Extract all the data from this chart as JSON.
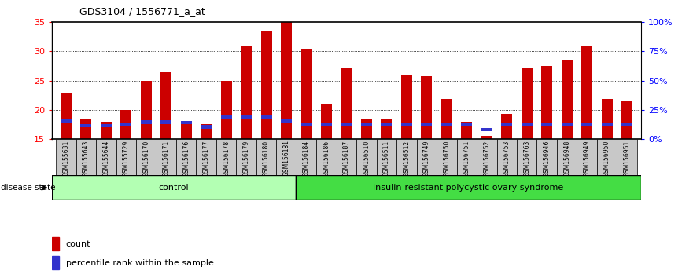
{
  "title": "GDS3104 / 1556771_a_at",
  "samples": [
    "GSM155631",
    "GSM155643",
    "GSM155644",
    "GSM155729",
    "GSM156170",
    "GSM156171",
    "GSM156176",
    "GSM156177",
    "GSM156178",
    "GSM156179",
    "GSM156180",
    "GSM156181",
    "GSM156184",
    "GSM156186",
    "GSM156187",
    "GSM156510",
    "GSM156511",
    "GSM156512",
    "GSM156749",
    "GSM156750",
    "GSM156751",
    "GSM156752",
    "GSM156753",
    "GSM156763",
    "GSM156946",
    "GSM156948",
    "GSM156949",
    "GSM156950",
    "GSM156951"
  ],
  "count_values": [
    23.0,
    18.5,
    18.0,
    20.0,
    25.0,
    26.5,
    17.5,
    17.5,
    25.0,
    31.0,
    33.5,
    35.0,
    30.5,
    21.0,
    27.2,
    18.5,
    18.5,
    26.0,
    25.8,
    21.8,
    18.0,
    15.5,
    19.3,
    27.3,
    27.5,
    28.5,
    31.0,
    21.8,
    21.5
  ],
  "percentile_bot": [
    17.7,
    17.0,
    17.0,
    17.2,
    17.5,
    17.5,
    17.5,
    16.8,
    18.5,
    18.5,
    18.5,
    17.8,
    17.2,
    17.2,
    17.2,
    17.2,
    17.2,
    17.2,
    17.2,
    17.2,
    17.2,
    16.3,
    17.2,
    17.2,
    17.2,
    17.2,
    17.2,
    17.2,
    17.2
  ],
  "percentile_top": [
    18.3,
    17.6,
    17.6,
    17.7,
    18.2,
    18.2,
    18.1,
    17.4,
    19.2,
    19.2,
    19.2,
    18.4,
    17.8,
    17.8,
    17.8,
    17.8,
    17.8,
    17.8,
    17.8,
    17.8,
    17.8,
    16.9,
    17.8,
    17.8,
    17.8,
    17.8,
    17.8,
    17.8,
    17.8
  ],
  "control_count": 12,
  "disease_count": 17,
  "y_min": 15,
  "y_max": 35,
  "y_ticks": [
    15,
    20,
    25,
    30,
    35
  ],
  "bar_color_red": "#cc0000",
  "bar_color_blue": "#3333cc",
  "chart_bg": "#ffffff",
  "label_bg": "#c8c8c8",
  "control_bg": "#b3ffb3",
  "disease_bg": "#44dd44",
  "bar_width": 0.55,
  "legend_count_label": "count",
  "legend_percentile_label": "percentile rank within the sample",
  "disease_state_label": "disease state",
  "control_label": "control",
  "disease_label": "insulin-resistant polycystic ovary syndrome"
}
